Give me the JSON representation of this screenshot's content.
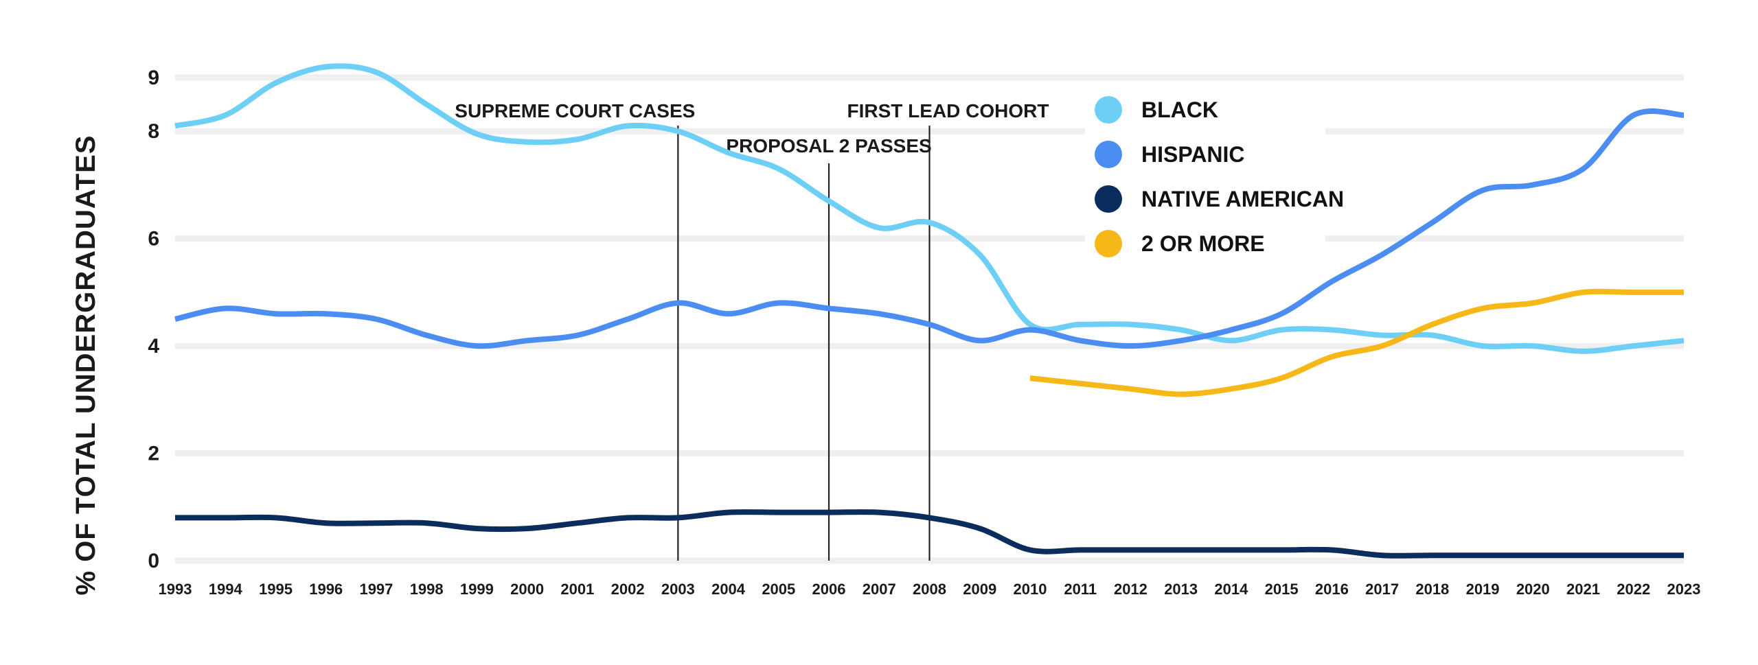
{
  "chart_data": {
    "type": "line",
    "title": "",
    "xlabel": "",
    "ylabel": "% OF TOTAL UNDERGRADUATES",
    "ylim": [
      0,
      9
    ],
    "yticks": [
      0,
      2,
      4,
      6,
      8,
      9
    ],
    "grid": true,
    "legend_position": "top-center",
    "x": [
      1993,
      1994,
      1995,
      1996,
      1997,
      1998,
      1999,
      2000,
      2001,
      2002,
      2003,
      2004,
      2005,
      2006,
      2007,
      2008,
      2009,
      2010,
      2011,
      2012,
      2013,
      2014,
      2015,
      2016,
      2017,
      2018,
      2019,
      2020,
      2021,
      2022,
      2023
    ],
    "series": [
      {
        "name": "BLACK",
        "color": "#6dcff6",
        "values": [
          8.1,
          8.3,
          8.9,
          9.2,
          9.1,
          8.5,
          7.95,
          7.8,
          7.85,
          8.1,
          8.0,
          7.6,
          7.3,
          6.7,
          6.2,
          6.3,
          5.7,
          4.4,
          4.4,
          4.4,
          4.3,
          4.1,
          4.3,
          4.3,
          4.2,
          4.2,
          4.0,
          4.0,
          3.9,
          4.0,
          4.1
        ]
      },
      {
        "name": "HISPANIC",
        "color": "#4b8df0",
        "values": [
          4.5,
          4.7,
          4.6,
          4.6,
          4.5,
          4.2,
          4.0,
          4.1,
          4.2,
          4.5,
          4.8,
          4.6,
          4.8,
          4.7,
          4.6,
          4.4,
          4.1,
          4.3,
          4.1,
          4.0,
          4.1,
          4.3,
          4.6,
          5.2,
          5.7,
          6.3,
          6.9,
          7.0,
          7.3,
          8.3,
          8.3
        ]
      },
      {
        "name": "NATIVE AMERICAN",
        "color": "#0b2d5e",
        "values": [
          0.8,
          0.8,
          0.8,
          0.7,
          0.7,
          0.7,
          0.6,
          0.6,
          0.7,
          0.8,
          0.8,
          0.9,
          0.9,
          0.9,
          0.9,
          0.8,
          0.6,
          0.2,
          0.2,
          0.2,
          0.2,
          0.2,
          0.2,
          0.2,
          0.1,
          0.1,
          0.1,
          0.1,
          0.1,
          0.1,
          0.1
        ]
      },
      {
        "name": "2 OR MORE",
        "color": "#f6b818",
        "values": [
          null,
          null,
          null,
          null,
          null,
          null,
          null,
          null,
          null,
          null,
          null,
          null,
          null,
          null,
          null,
          null,
          null,
          3.4,
          3.3,
          3.2,
          3.1,
          3.2,
          3.4,
          3.8,
          4.0,
          4.4,
          4.7,
          4.8,
          5.0,
          5.0,
          5.0
        ]
      }
    ],
    "annotations": [
      {
        "label": "SUPREME COURT CASES",
        "x": 2003
      },
      {
        "label": "PROPOSAL 2 PASSES",
        "x": 2006
      },
      {
        "label": "FIRST LEAD COHORT",
        "x": 2008
      }
    ]
  }
}
